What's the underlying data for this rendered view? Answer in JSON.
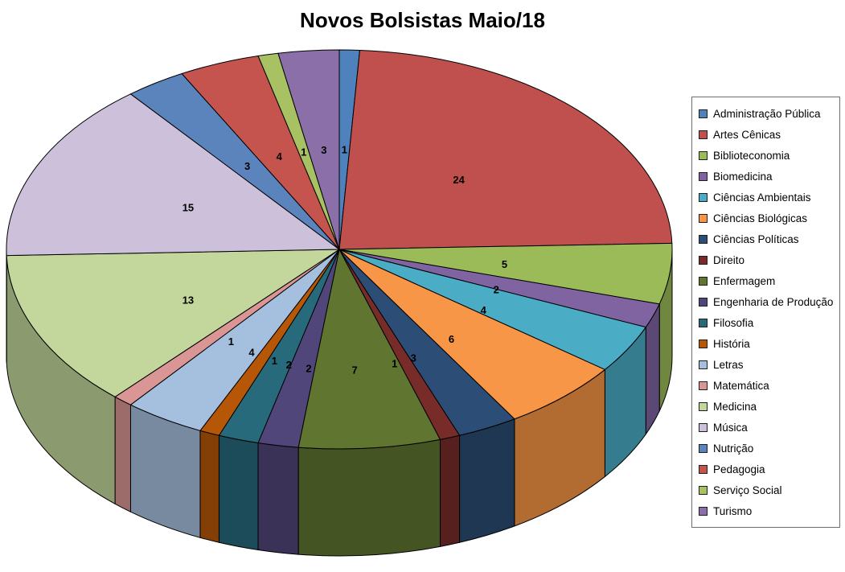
{
  "chart_data": {
    "type": "pie",
    "style": "3d",
    "title": "Novos Bolsistas Maio/18",
    "legend_position": "right",
    "data_labels": "value",
    "categories": [
      "Administração Pública",
      "Artes Cênicas",
      "Biblioteconomia",
      "Biomedicina",
      "Ciências Ambientais",
      "Ciências Biológicas",
      "Ciências Políticas",
      "Direito",
      "Enfermagem",
      "Engenharia de Produção",
      "Filosofia",
      "História",
      "Letras",
      "Matemática",
      "Medicina",
      "Música",
      "Nutrição",
      "Pedagogia",
      "Serviço Social",
      "Turismo"
    ],
    "values": [
      1,
      24,
      5,
      2,
      4,
      6,
      3,
      1,
      7,
      2,
      2,
      1,
      4,
      1,
      13,
      15,
      3,
      4,
      1,
      3
    ],
    "colors": [
      "#4F81BD",
      "#C0504D",
      "#9BBB59",
      "#8064A2",
      "#4BACC6",
      "#F79646",
      "#2C4D75",
      "#772C2A",
      "#5F7530",
      "#514679",
      "#276A7C",
      "#B65708",
      "#A5BFDE",
      "#D99694",
      "#C3D69B",
      "#CCC0DA",
      "#5B84BC",
      "#C5544F",
      "#A8C162",
      "#8A6FA9"
    ]
  }
}
